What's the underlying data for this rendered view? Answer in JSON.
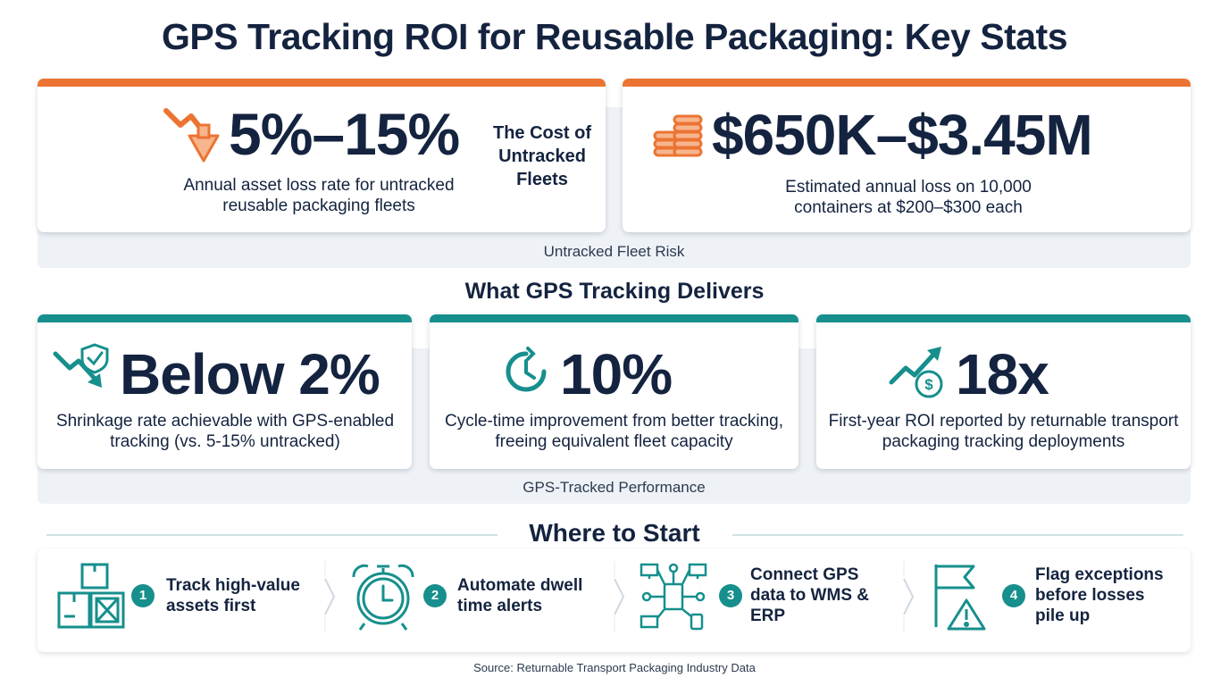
{
  "title": "GPS Tracking ROI for Reusable Packaging: Key Stats",
  "risk": {
    "band_label": "Untracked Fleet Risk",
    "card1": {
      "value": "5%–15%",
      "description": "Annual asset loss rate for untracked reusable packaging fleets",
      "side_title": "The Cost of Untracked Fleets",
      "icon": "down-trend-arrow-icon"
    },
    "card2": {
      "value": "$650K–$3.45M",
      "description": "Estimated annual loss on 10,000 containers at $200–$300 each",
      "icon": "coin-stack-icon"
    }
  },
  "delivers": {
    "heading": "What GPS Tracking Delivers",
    "band_label": "GPS-Tracked Performance",
    "cards": [
      {
        "value": "Below 2%",
        "description": "Shrinkage rate achievable with GPS-enabled tracking (vs. 5-15% untracked)",
        "icon": "shield-down-arrow-icon"
      },
      {
        "value": "10%",
        "description": "Cycle-time improvement from better tracking, freeing equivalent fleet capacity",
        "icon": "clock-cycle-icon"
      },
      {
        "value": "18x",
        "description": "First-year ROI reported by returnable transport packaging tracking deployments",
        "icon": "growth-dollar-icon"
      }
    ]
  },
  "start": {
    "heading": "Where to Start",
    "steps": [
      {
        "number": "1",
        "text": "Track high-value assets first",
        "icon": "boxes-icon"
      },
      {
        "number": "2",
        "text": "Automate dwell time alerts",
        "icon": "alarm-clock-icon"
      },
      {
        "number": "3",
        "text": "Connect GPS data to WMS & ERP",
        "icon": "network-devices-icon"
      },
      {
        "number": "4",
        "text": "Flag exceptions before losses pile up",
        "icon": "flag-warning-icon"
      }
    ]
  },
  "source": "Source: Returnable Transport Packaging Industry Data",
  "colors": {
    "navy": "#14233f",
    "orange": "#ec7433",
    "teal": "#168f8d",
    "band": "#eef2f6"
  }
}
